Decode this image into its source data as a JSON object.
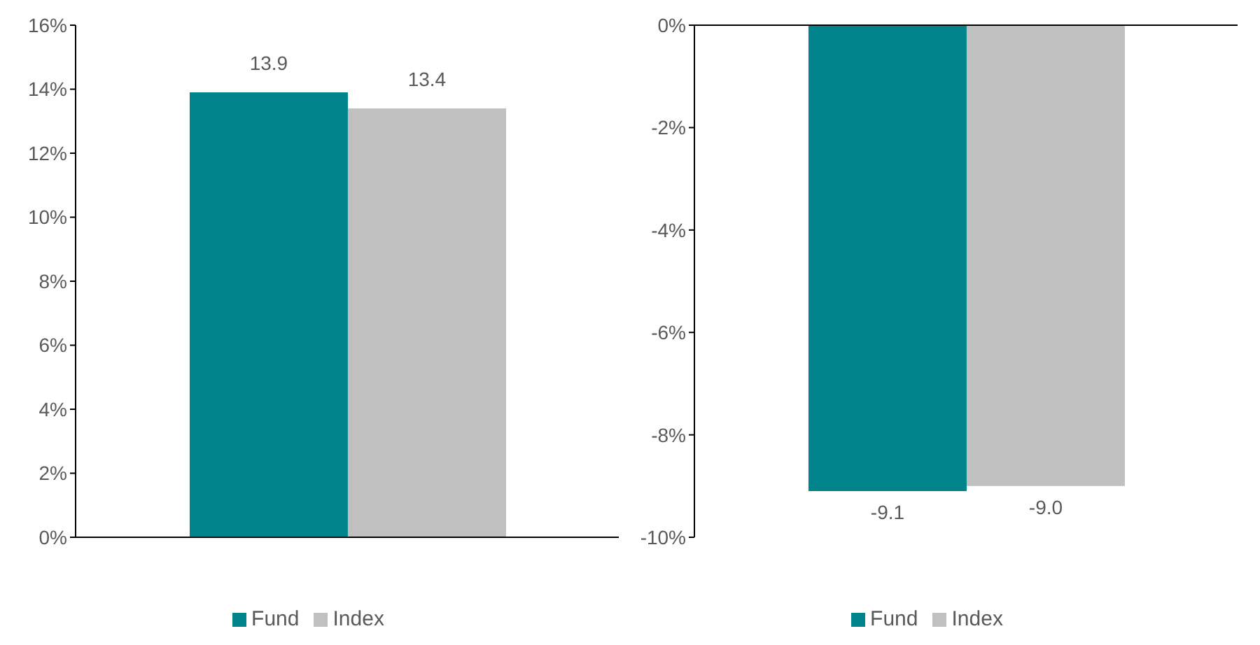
{
  "chart_data": [
    {
      "type": "bar",
      "categories": [
        null
      ],
      "series": [
        {
          "name": "Fund",
          "color": "#00838a",
          "values": [
            13.9
          ],
          "value_labels": [
            "13.9"
          ]
        },
        {
          "name": "Index",
          "color": "#c0c0c0",
          "values": [
            13.4
          ],
          "value_labels": [
            "13.4"
          ]
        }
      ],
      "ylim": [
        0,
        16
      ],
      "yticks": [
        {
          "value": 0,
          "label": "0%"
        },
        {
          "value": 2,
          "label": "2%"
        },
        {
          "value": 4,
          "label": "4%"
        },
        {
          "value": 6,
          "label": "6%"
        },
        {
          "value": 8,
          "label": "8%"
        },
        {
          "value": 10,
          "label": "10%"
        },
        {
          "value": 12,
          "label": "12%"
        },
        {
          "value": 14,
          "label": "14%"
        },
        {
          "value": 16,
          "label": "16%"
        }
      ],
      "grid": false,
      "legend": "bottom"
    },
    {
      "type": "bar",
      "categories": [
        null
      ],
      "series": [
        {
          "name": "Fund",
          "color": "#00838a",
          "values": [
            -9.1
          ],
          "value_labels": [
            "-9.1"
          ]
        },
        {
          "name": "Index",
          "color": "#c0c0c0",
          "values": [
            -9.0
          ],
          "value_labels": [
            "-9.0"
          ]
        }
      ],
      "ylim": [
        -10,
        0
      ],
      "yticks": [
        {
          "value": -10,
          "label": "-10%"
        },
        {
          "value": -8,
          "label": "-8%"
        },
        {
          "value": -6,
          "label": "-6%"
        },
        {
          "value": -4,
          "label": "-4%"
        },
        {
          "value": -2,
          "label": "-2%"
        },
        {
          "value": 0,
          "label": "0%"
        }
      ],
      "grid": false,
      "legend": "bottom"
    }
  ]
}
